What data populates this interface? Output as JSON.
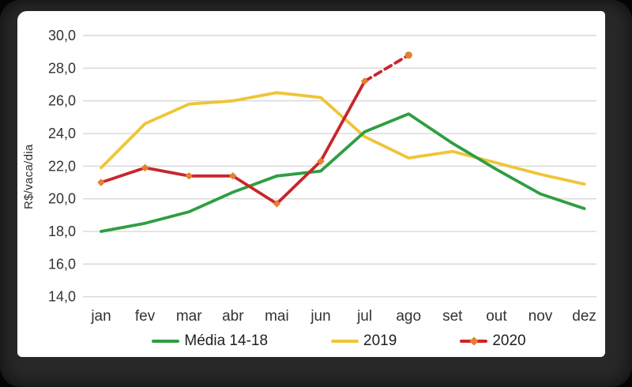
{
  "frame": {
    "outer_background": "#040404",
    "frame_color": "#282828",
    "card_color": "#ffffff"
  },
  "axis": {
    "text_color": "#333333",
    "grid_color": "#d9d9d9"
  },
  "chart_data": {
    "type": "line",
    "title": "",
    "xlabel": "",
    "ylabel": "R$/vaca/dia",
    "categories": [
      "jan",
      "fev",
      "mar",
      "abr",
      "mai",
      "jun",
      "jul",
      "ago",
      "set",
      "out",
      "nov",
      "dez"
    ],
    "ylim": [
      14,
      30
    ],
    "y_tick_step": 2,
    "y_tick_labels": [
      "30,0",
      "28,0",
      "26,0",
      "24,0",
      "22,0",
      "20,0",
      "18,0",
      "16,0",
      "14,0"
    ],
    "grid": true,
    "legend_position": "bottom",
    "legend_order": [
      "media-14-18",
      "2019",
      "2020"
    ],
    "series": [
      {
        "id": "2019",
        "name": "2019",
        "color": "#EFC437",
        "line_style": "solid",
        "markers": false,
        "values": [
          21.9,
          24.6,
          25.8,
          26.0,
          26.5,
          26.2,
          23.8,
          22.5,
          22.9,
          22.2,
          21.5,
          20.9
        ]
      },
      {
        "id": "media-14-18",
        "name": "Média 14-18",
        "color": "#2F9E41",
        "line_style": "solid",
        "markers": false,
        "values": [
          18.0,
          18.5,
          19.2,
          20.4,
          21.4,
          21.7,
          24.1,
          25.2,
          23.4,
          21.8,
          20.3,
          19.4
        ]
      },
      {
        "id": "2020",
        "name": "2020",
        "color": "#C9252C",
        "marker_color": "#E5802E",
        "line_style": "solid",
        "markers": "diamond",
        "last_marker": "circle",
        "dashed_last_segment": true,
        "values": [
          21.0,
          21.9,
          21.4,
          21.4,
          19.7,
          22.3,
          27.2,
          28.8,
          null,
          null,
          null,
          null
        ]
      }
    ]
  }
}
